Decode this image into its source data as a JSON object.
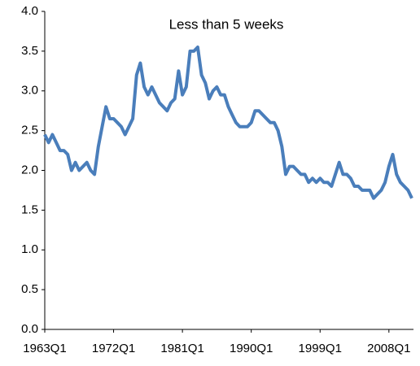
{
  "chart_data": {
    "type": "line",
    "title": "Less than 5 weeks",
    "categories": [
      "1963Q1",
      null,
      null,
      null,
      null,
      null,
      null,
      null,
      null,
      null,
      null,
      null,
      null,
      null,
      null,
      null,
      null,
      null,
      "1972Q1",
      null,
      null,
      null,
      null,
      null,
      null,
      null,
      null,
      null,
      null,
      null,
      null,
      null,
      null,
      null,
      null,
      null,
      "1981Q1",
      null,
      null,
      null,
      null,
      null,
      null,
      null,
      null,
      null,
      null,
      null,
      null,
      null,
      null,
      null,
      null,
      null,
      "1990Q1",
      null,
      null,
      null,
      null,
      null,
      null,
      null,
      null,
      null,
      null,
      null,
      null,
      null,
      null,
      null,
      null,
      null,
      "1999Q1",
      null,
      null,
      null,
      null,
      null,
      null,
      null,
      null,
      null,
      null,
      null,
      null,
      null,
      null,
      null,
      null,
      null,
      "2008Q1",
      null,
      null,
      null,
      null,
      null,
      null
    ],
    "series": [
      {
        "color": "#4a7ebb",
        "values": [
          2.45,
          2.35,
          2.45,
          2.35,
          2.25,
          2.25,
          2.2,
          2.0,
          2.1,
          2.0,
          2.05,
          2.1,
          2.0,
          1.95,
          2.3,
          2.55,
          2.8,
          2.65,
          2.65,
          2.6,
          2.55,
          2.45,
          2.55,
          2.65,
          3.2,
          3.35,
          3.05,
          2.95,
          3.05,
          2.95,
          2.85,
          2.8,
          2.75,
          2.85,
          2.9,
          3.25,
          2.95,
          3.05,
          3.5,
          3.5,
          3.55,
          3.2,
          3.1,
          2.9,
          3.0,
          3.05,
          2.95,
          2.95,
          2.8,
          2.7,
          2.6,
          2.55,
          2.55,
          2.55,
          2.6,
          2.75,
          2.75,
          2.7,
          2.65,
          2.6,
          2.6,
          2.5,
          2.3,
          1.95,
          2.05,
          2.05,
          2.0,
          1.95,
          1.95,
          1.85,
          1.9,
          1.85,
          1.9,
          1.85,
          1.85,
          1.8,
          1.95,
          2.1,
          1.95,
          1.95,
          1.9,
          1.8,
          1.8,
          1.75,
          1.75,
          1.75,
          1.65,
          1.7,
          1.75,
          1.85,
          2.05,
          2.2,
          1.95,
          1.85,
          1.8,
          1.75,
          1.65
        ]
      }
    ],
    "ylim": [
      0,
      4
    ],
    "yticks": [
      {
        "value": 0,
        "label": "0.0"
      },
      {
        "value": 0.5,
        "label": "0.5"
      },
      {
        "value": 1,
        "label": "1.0"
      },
      {
        "value": 1.5,
        "label": "1.5"
      },
      {
        "value": 2,
        "label": "2.0"
      },
      {
        "value": 2.5,
        "label": "2.5"
      },
      {
        "value": 3,
        "label": "3.0"
      },
      {
        "value": 3.5,
        "label": "3.5"
      },
      {
        "value": 4,
        "label": "4.0"
      }
    ]
  }
}
